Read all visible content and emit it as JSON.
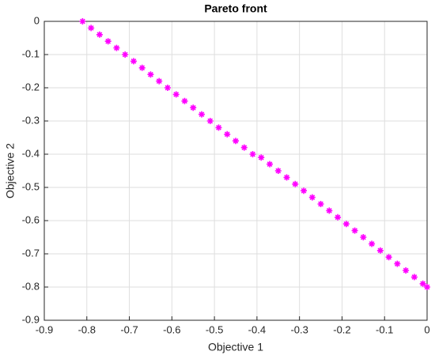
{
  "chart_data": {
    "type": "scatter",
    "title": "Pareto front",
    "xlabel": "Objective 1",
    "ylabel": "Objective 2",
    "series": [
      {
        "color": "#ff00ff",
        "marker": "*",
        "x": [
          -0.81,
          -0.79,
          -0.77,
          -0.75,
          -0.73,
          -0.71,
          -0.69,
          -0.67,
          -0.65,
          -0.63,
          -0.61,
          -0.59,
          -0.57,
          -0.55,
          -0.53,
          -0.51,
          -0.49,
          -0.47,
          -0.45,
          -0.43,
          -0.41,
          -0.39,
          -0.37,
          -0.35,
          -0.33,
          -0.31,
          -0.29,
          -0.27,
          -0.25,
          -0.23,
          -0.21,
          -0.19,
          -0.17,
          -0.15,
          -0.13,
          -0.11,
          -0.09,
          -0.07,
          -0.05,
          -0.03,
          -0.01,
          0
        ],
        "values": [
          0,
          -0.02,
          -0.04,
          -0.06,
          -0.08,
          -0.1,
          -0.12,
          -0.14,
          -0.16,
          -0.18,
          -0.2,
          -0.22,
          -0.24,
          -0.26,
          -0.28,
          -0.3,
          -0.32,
          -0.34,
          -0.36,
          -0.38,
          -0.4,
          -0.41,
          -0.43,
          -0.45,
          -0.47,
          -0.49,
          -0.51,
          -0.53,
          -0.55,
          -0.57,
          -0.59,
          -0.61,
          -0.63,
          -0.65,
          -0.67,
          -0.69,
          -0.71,
          -0.73,
          -0.75,
          -0.77,
          -0.79,
          -0.8
        ]
      }
    ],
    "xlim": [
      -0.9,
      0
    ],
    "ylim": [
      -0.9,
      0
    ],
    "xticks": [
      -0.9,
      -0.8,
      -0.7,
      -0.6,
      -0.5,
      -0.4,
      -0.3,
      -0.2,
      -0.1,
      0
    ],
    "yticks": [
      0,
      -0.1,
      -0.2,
      -0.3,
      -0.4,
      -0.5,
      -0.6,
      -0.7,
      -0.8,
      -0.9
    ],
    "grid": true
  }
}
